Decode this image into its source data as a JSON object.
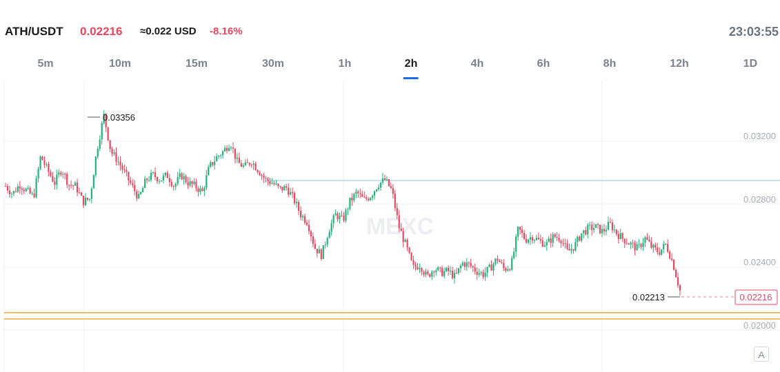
{
  "header": {
    "pair": "ATH/USDT",
    "price": "0.02216",
    "usd_equiv": "≈0.022 USD",
    "change": "-8.16%",
    "clock": "23:03:55"
  },
  "timeframes": {
    "items": [
      "5m",
      "10m",
      "15m",
      "30m",
      "1h",
      "2h",
      "4h",
      "6h",
      "8h",
      "12h",
      "1D"
    ],
    "active": "2h"
  },
  "colors": {
    "up": "#21b27a",
    "down": "#e8475f",
    "grid": "#eef0f3",
    "axis_text": "#a8adb7",
    "hline_blue": "#9fc5e6",
    "hline_orange": "#f0a93a",
    "watermark": "#edeef1"
  },
  "watermark": "MEXC",
  "auto_button": "A",
  "chart_data": {
    "type": "candlestick",
    "title": "",
    "xlabel": "",
    "ylabel": "",
    "ylim": [
      0.0195,
      0.0352
    ],
    "y_ticks": [
      "0.03200",
      "0.02800",
      "0.02400",
      "0.02000"
    ],
    "grid": true,
    "annotations": {
      "high_label": "0.03356",
      "low_label": "0.02213",
      "current_price": "0.02216"
    },
    "horizontal_lines": [
      {
        "value": 0.02915,
        "color": "blue"
      },
      {
        "value": 0.02075,
        "color": "orange"
      },
      {
        "value": 0.02035,
        "color": "orange"
      }
    ],
    "series": [
      {
        "close_path": [
          0.0288,
          0.0283,
          0.0289,
          0.0285,
          0.0281,
          0.0307,
          0.0298,
          0.029,
          0.0299,
          0.0289,
          0.0288,
          0.0278,
          0.028,
          0.0311,
          0.0333,
          0.031,
          0.0304,
          0.0296,
          0.0288,
          0.028,
          0.0292,
          0.0295,
          0.0292,
          0.0295,
          0.0288,
          0.0295,
          0.029,
          0.0288,
          0.0284,
          0.03,
          0.0306,
          0.031,
          0.0316,
          0.0303,
          0.03,
          0.0304,
          0.0298,
          0.0292,
          0.029,
          0.0286,
          0.0287,
          0.028,
          0.027,
          0.0265,
          0.0249,
          0.0244,
          0.026,
          0.027,
          0.0266,
          0.0278,
          0.0284,
          0.0279,
          0.0282,
          0.0289,
          0.0292,
          0.0285,
          0.0262,
          0.025,
          0.0236,
          0.0238,
          0.023,
          0.0236,
          0.0233,
          0.0234,
          0.023,
          0.0239,
          0.0238,
          0.0234,
          0.0232,
          0.0236,
          0.0242,
          0.0235,
          0.0238,
          0.0261,
          0.0254,
          0.0256,
          0.0253,
          0.0251,
          0.0256,
          0.0255,
          0.0246,
          0.025,
          0.0258,
          0.0261,
          0.0262,
          0.0259,
          0.0264,
          0.0258,
          0.0254,
          0.0251,
          0.0248,
          0.0255,
          0.0249,
          0.0246,
          0.0251,
          0.0239,
          0.02216
        ]
      }
    ]
  }
}
